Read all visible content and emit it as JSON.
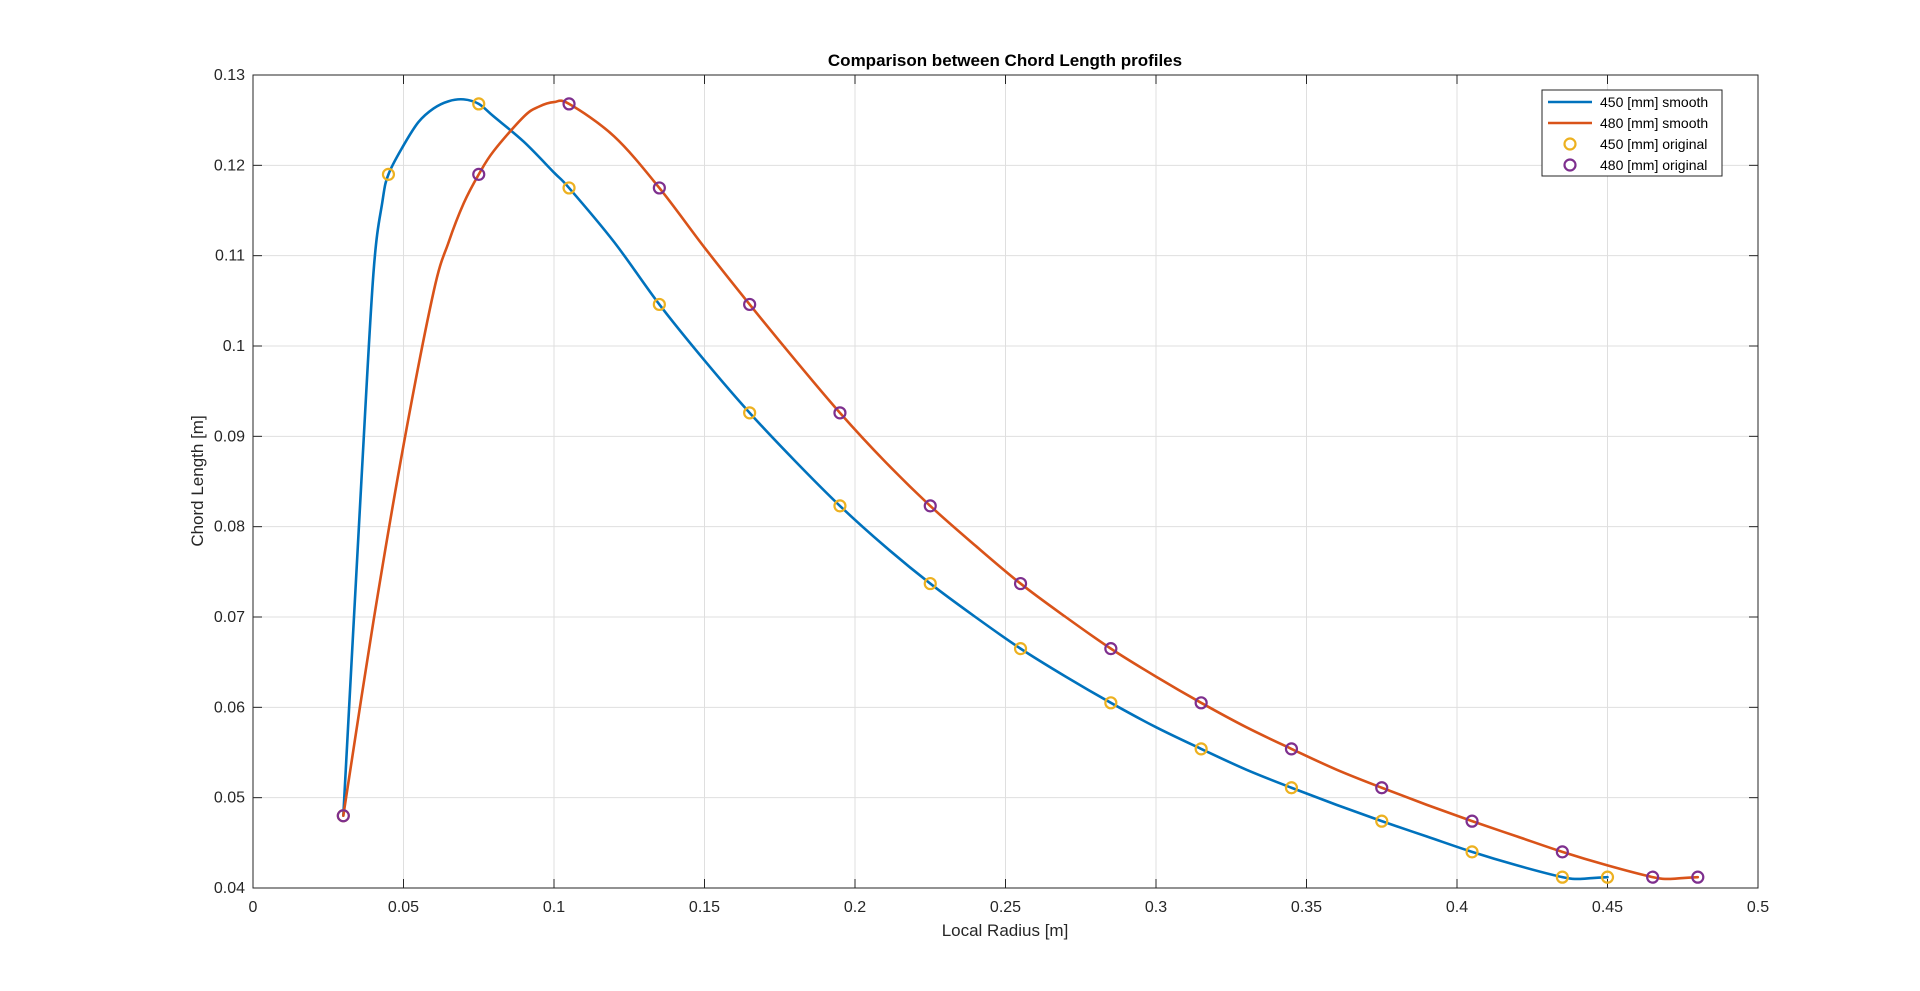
{
  "chart_data": {
    "type": "line",
    "title": "Comparison between Chord Length profiles",
    "xlabel": "Local Radius [m]",
    "ylabel": "Chord Length [m]",
    "xlim": [
      0,
      0.5
    ],
    "ylim": [
      0.04,
      0.13
    ],
    "xticks": [
      0,
      0.05,
      0.1,
      0.15,
      0.2,
      0.25,
      0.3,
      0.35,
      0.4,
      0.45,
      0.5
    ],
    "xtick_labels": [
      "0",
      "0.05",
      "0.1",
      "0.15",
      "0.2",
      "0.25",
      "0.3",
      "0.35",
      "0.4",
      "0.45",
      "0.5"
    ],
    "yticks": [
      0.04,
      0.05,
      0.06,
      0.07,
      0.08,
      0.09,
      0.1,
      0.11,
      0.12,
      0.13
    ],
    "ytick_labels": [
      "0.04",
      "0.05",
      "0.06",
      "0.07",
      "0.08",
      "0.09",
      "0.1",
      "0.11",
      "0.12",
      "0.13"
    ],
    "grid": true,
    "legend_position": "top-right",
    "series": [
      {
        "name": "450 [mm] smooth",
        "kind": "line",
        "color": "#0072BD",
        "x": [
          0.03,
          0.036,
          0.04,
          0.043,
          0.045,
          0.05,
          0.055,
          0.06,
          0.065,
          0.07,
          0.075,
          0.08,
          0.09,
          0.1,
          0.105,
          0.12,
          0.135,
          0.15,
          0.165,
          0.18,
          0.195,
          0.21,
          0.225,
          0.24,
          0.255,
          0.27,
          0.285,
          0.3,
          0.315,
          0.33,
          0.345,
          0.36,
          0.375,
          0.39,
          0.405,
          0.42,
          0.435,
          0.44,
          0.445,
          0.45
        ],
        "y": [
          0.048,
          0.085,
          0.108,
          0.116,
          0.119,
          0.1222,
          0.1248,
          0.1263,
          0.1271,
          0.1273,
          0.1268,
          0.1254,
          0.1226,
          0.1192,
          0.1175,
          0.1115,
          0.1046,
          0.0984,
          0.0926,
          0.0873,
          0.0823,
          0.0778,
          0.0737,
          0.07,
          0.0665,
          0.0634,
          0.0605,
          0.0578,
          0.0554,
          0.0531,
          0.0511,
          0.0492,
          0.0474,
          0.0457,
          0.044,
          0.0425,
          0.0412,
          0.041,
          0.0411,
          0.0412
        ]
      },
      {
        "name": "480 [mm] smooth",
        "kind": "line",
        "color": "#D95319",
        "x": [
          0.03,
          0.04,
          0.05,
          0.06,
          0.065,
          0.07,
          0.075,
          0.08,
          0.09,
          0.095,
          0.1,
          0.105,
          0.12,
          0.135,
          0.15,
          0.165,
          0.18,
          0.195,
          0.21,
          0.225,
          0.24,
          0.255,
          0.27,
          0.285,
          0.3,
          0.315,
          0.33,
          0.345,
          0.36,
          0.375,
          0.39,
          0.405,
          0.42,
          0.435,
          0.45,
          0.465,
          0.47,
          0.475,
          0.48
        ],
        "y": [
          0.048,
          0.0695,
          0.089,
          0.106,
          0.1115,
          0.1158,
          0.119,
          0.1216,
          0.1254,
          0.1265,
          0.127,
          0.1268,
          0.1232,
          0.1175,
          0.1109,
          0.1046,
          0.0985,
          0.0926,
          0.0872,
          0.0823,
          0.0779,
          0.0737,
          0.07,
          0.0665,
          0.0634,
          0.0605,
          0.0578,
          0.0554,
          0.0531,
          0.0511,
          0.0492,
          0.0474,
          0.0457,
          0.044,
          0.0425,
          0.0412,
          0.041,
          0.0411,
          0.0412
        ]
      },
      {
        "name": "450 [mm] original",
        "kind": "marker",
        "color": "#EDB120",
        "x": [
          0.03,
          0.045,
          0.075,
          0.105,
          0.135,
          0.165,
          0.195,
          0.225,
          0.255,
          0.285,
          0.315,
          0.345,
          0.375,
          0.405,
          0.435,
          0.45
        ],
        "y": [
          0.048,
          0.119,
          0.1268,
          0.1175,
          0.1046,
          0.0926,
          0.0823,
          0.0737,
          0.0665,
          0.0605,
          0.0554,
          0.0511,
          0.0474,
          0.044,
          0.0412,
          0.0412
        ]
      },
      {
        "name": "480 [mm] original",
        "kind": "marker",
        "color": "#7E2F8E",
        "x": [
          0.03,
          0.075,
          0.105,
          0.135,
          0.165,
          0.195,
          0.225,
          0.255,
          0.285,
          0.315,
          0.345,
          0.375,
          0.405,
          0.435,
          0.465,
          0.48
        ],
        "y": [
          0.048,
          0.119,
          0.1268,
          0.1175,
          0.1046,
          0.0926,
          0.0823,
          0.0737,
          0.0665,
          0.0605,
          0.0554,
          0.0511,
          0.0474,
          0.044,
          0.0412,
          0.0412
        ]
      }
    ]
  }
}
